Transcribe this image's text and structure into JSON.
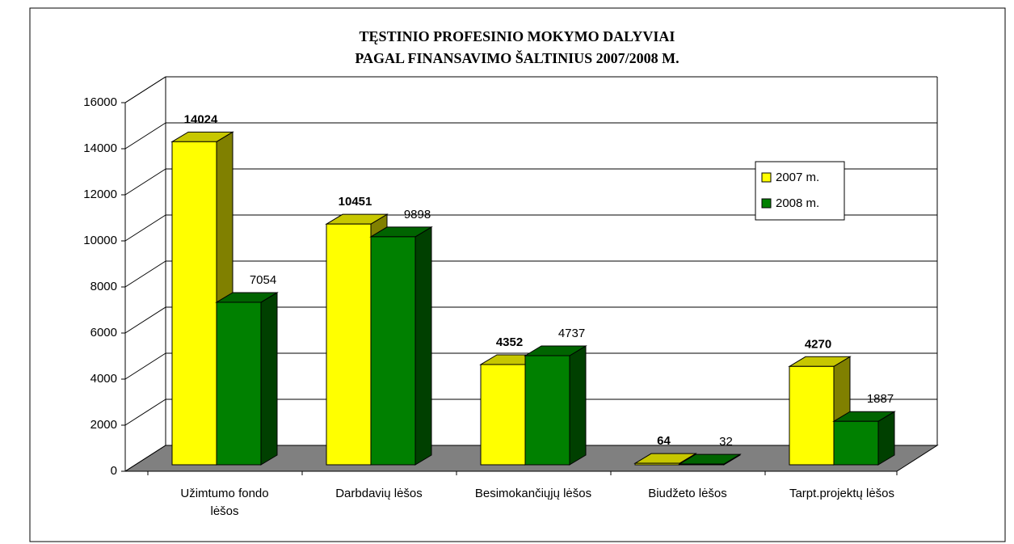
{
  "chart_data": {
    "type": "bar3d",
    "title": "TĘSTINIO PROFESINIO MOKYMO DALYVIAI\nPAGAL FINANSAVIMO ŠALTINIUS 2007/2008 M.",
    "categories": [
      "Užimtumo fondo\nlėšos",
      "Darbdavių lėšos",
      "Besimokančiųjų lėšos",
      "Biudžeto lėšos",
      "Tarpt.projektų lėšos"
    ],
    "series": [
      {
        "name": "2007 m.",
        "color": "#ffff00",
        "label_weight": "bold",
        "values": [
          14024,
          10451,
          4352,
          64,
          4270
        ]
      },
      {
        "name": "2008 m.",
        "color": "#008000",
        "label_weight": "normal",
        "values": [
          7054,
          9898,
          4737,
          32,
          1887
        ]
      }
    ],
    "ylim": [
      0,
      16000
    ],
    "yticks": [
      0,
      2000,
      4000,
      6000,
      8000,
      10000,
      12000,
      14000,
      16000
    ],
    "grid": true,
    "legend": "right"
  }
}
